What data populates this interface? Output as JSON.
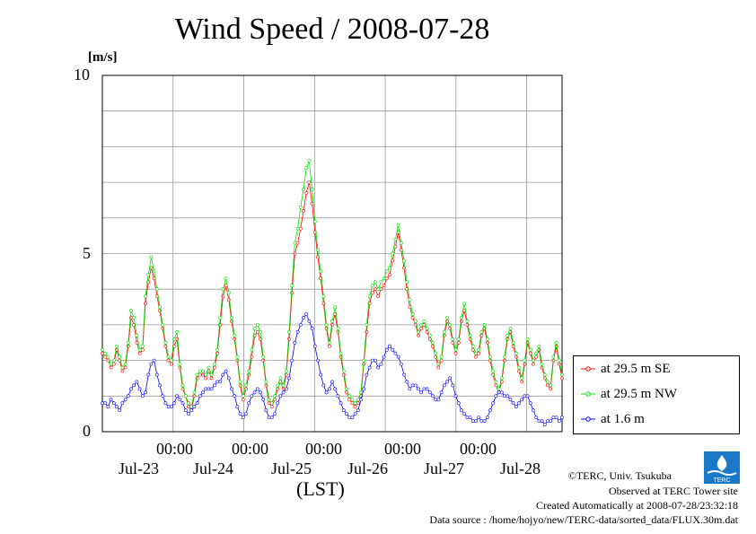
{
  "chart_data": {
    "type": "line",
    "title": "Wind Speed / 2008-07-28",
    "xlabel": "(LST)",
    "ylabel": "[m/s]",
    "ylim": [
      0,
      10
    ],
    "y_ticks": [
      "0",
      "5",
      "10"
    ],
    "x_time_ticks": [
      "00:00",
      "00:00",
      "00:00",
      "00:00",
      "00:00"
    ],
    "x_date_labels": [
      "Jul-23",
      "Jul-24",
      "Jul-25",
      "Jul-26",
      "Jul-27",
      "Jul-28"
    ],
    "x_unit": "day index from start of Jul-22 12:00",
    "grid": true,
    "legend_placement": "lower-right outside",
    "series": [
      {
        "name": "at 29.5 m SE",
        "color": "#ff0000",
        "values": [
          2.2,
          2.1,
          2.0,
          1.8,
          1.9,
          2.3,
          2.0,
          1.7,
          1.8,
          2.4,
          3.2,
          3.0,
          2.5,
          2.2,
          2.3,
          3.6,
          4.2,
          4.6,
          4.3,
          3.8,
          3.4,
          2.9,
          2.4,
          2.0,
          1.9,
          2.4,
          2.6,
          1.8,
          1.2,
          1.0,
          0.7,
          0.6,
          1.0,
          1.5,
          1.6,
          1.6,
          1.5,
          1.7,
          1.5,
          1.8,
          2.2,
          3.0,
          3.8,
          4.1,
          3.7,
          3.1,
          2.6,
          2.0,
          1.3,
          0.9,
          1.2,
          1.6,
          2.1,
          2.7,
          2.8,
          2.6,
          2.0,
          1.3,
          0.8,
          0.7,
          0.9,
          1.2,
          1.4,
          1.2,
          1.6,
          2.6,
          3.9,
          5.0,
          5.3,
          5.7,
          6.2,
          6.7,
          7.0,
          6.4,
          5.6,
          4.9,
          4.3,
          3.6,
          2.9,
          2.4,
          3.0,
          3.3,
          2.8,
          2.1,
          1.6,
          1.1,
          0.9,
          0.8,
          0.7,
          0.8,
          1.0,
          1.9,
          2.8,
          3.6,
          3.9,
          4.0,
          3.8,
          4.0,
          4.1,
          4.3,
          4.4,
          4.8,
          5.2,
          5.6,
          5.1,
          4.6,
          4.0,
          3.5,
          3.2,
          3.0,
          2.7,
          2.9,
          3.0,
          2.8,
          2.6,
          2.4,
          2.1,
          1.8,
          2.0,
          2.7,
          3.1,
          2.9,
          2.5,
          2.2,
          2.5,
          3.1,
          3.4,
          3.0,
          2.6,
          2.3,
          2.1,
          2.2,
          2.7,
          2.9,
          2.5,
          2.0,
          1.6,
          1.3,
          1.1,
          1.4,
          2.0,
          2.6,
          2.8,
          2.4,
          2.1,
          1.7,
          1.4,
          1.9,
          2.5,
          2.2,
          1.9,
          2.1,
          2.3,
          1.8,
          1.5,
          1.3,
          1.2,
          2.0,
          2.4,
          1.9,
          1.5
        ],
        "x_start": 0.0,
        "x_end": 6.5
      },
      {
        "name": "at 29.5 m NW",
        "color": "#00e000",
        "values": [
          2.3,
          2.2,
          2.1,
          1.9,
          2.0,
          2.4,
          2.1,
          1.8,
          1.9,
          2.5,
          3.4,
          3.2,
          2.7,
          2.3,
          2.4,
          3.8,
          4.4,
          4.9,
          4.5,
          4.0,
          3.5,
          3.0,
          2.5,
          2.1,
          2.0,
          2.6,
          2.8,
          1.9,
          1.3,
          1.0,
          0.8,
          0.7,
          1.1,
          1.6,
          1.7,
          1.7,
          1.6,
          1.8,
          1.6,
          1.9,
          2.3,
          3.2,
          4.0,
          4.3,
          3.9,
          3.2,
          2.7,
          2.1,
          1.4,
          1.0,
          1.3,
          1.7,
          2.3,
          2.9,
          3.0,
          2.8,
          2.1,
          1.4,
          0.9,
          0.8,
          1.0,
          1.3,
          1.5,
          1.3,
          1.7,
          2.8,
          4.1,
          5.3,
          5.7,
          6.3,
          6.8,
          7.4,
          7.6,
          6.8,
          5.9,
          5.1,
          4.5,
          3.8,
          3.0,
          2.5,
          3.1,
          3.5,
          2.9,
          2.2,
          1.7,
          1.2,
          1.0,
          0.9,
          0.8,
          0.9,
          1.1,
          2.0,
          3.0,
          3.8,
          4.1,
          4.2,
          4.0,
          4.2,
          4.3,
          4.5,
          4.6,
          5.0,
          5.4,
          5.8,
          5.3,
          4.8,
          4.2,
          3.7,
          3.3,
          3.1,
          2.8,
          3.0,
          3.1,
          2.9,
          2.7,
          2.5,
          2.2,
          1.9,
          2.1,
          2.8,
          3.2,
          3.0,
          2.6,
          2.3,
          2.6,
          3.2,
          3.6,
          3.1,
          2.7,
          2.4,
          2.2,
          2.3,
          2.8,
          3.0,
          2.6,
          2.1,
          1.7,
          1.4,
          1.2,
          1.5,
          2.1,
          2.7,
          2.9,
          2.5,
          2.2,
          1.8,
          1.5,
          2.0,
          2.6,
          2.3,
          2.0,
          2.2,
          2.4,
          1.9,
          1.6,
          1.4,
          1.3,
          2.1,
          2.5,
          2.0,
          1.6
        ],
        "x_start": 0.0,
        "x_end": 6.5
      },
      {
        "name": "at 1.6 m",
        "color": "#0000ff",
        "values": [
          0.8,
          0.8,
          0.7,
          0.9,
          0.8,
          0.7,
          0.6,
          0.8,
          0.9,
          1.0,
          1.2,
          1.3,
          1.4,
          1.2,
          1.0,
          1.1,
          1.6,
          1.9,
          2.0,
          1.6,
          1.3,
          1.0,
          0.8,
          0.7,
          0.7,
          0.8,
          1.0,
          0.9,
          0.8,
          0.6,
          0.5,
          0.6,
          0.7,
          0.8,
          1.0,
          1.1,
          1.2,
          1.2,
          1.2,
          1.3,
          1.4,
          1.4,
          1.6,
          1.7,
          1.5,
          1.2,
          1.0,
          0.7,
          0.5,
          0.4,
          0.5,
          0.8,
          1.0,
          1.1,
          1.2,
          1.1,
          0.9,
          0.6,
          0.4,
          0.4,
          0.5,
          0.8,
          1.0,
          1.1,
          1.2,
          1.5,
          2.0,
          2.5,
          2.8,
          3.0,
          3.2,
          3.3,
          3.1,
          2.9,
          2.4,
          2.0,
          1.6,
          1.3,
          1.1,
          1.2,
          1.4,
          1.2,
          1.0,
          0.8,
          0.6,
          0.5,
          0.4,
          0.4,
          0.5,
          0.6,
          0.9,
          1.2,
          1.6,
          1.8,
          2.0,
          2.0,
          1.8,
          1.9,
          2.1,
          2.3,
          2.4,
          2.3,
          2.2,
          2.1,
          1.9,
          1.6,
          1.4,
          1.2,
          1.3,
          1.3,
          1.2,
          1.1,
          1.2,
          1.2,
          1.1,
          1.0,
          0.9,
          0.9,
          1.1,
          1.3,
          1.4,
          1.5,
          1.3,
          1.0,
          0.8,
          0.6,
          0.5,
          0.4,
          0.4,
          0.3,
          0.3,
          0.4,
          0.3,
          0.3,
          0.4,
          0.6,
          0.8,
          1.0,
          1.1,
          1.1,
          1.0,
          1.0,
          0.9,
          0.8,
          0.7,
          0.8,
          0.9,
          1.0,
          1.0,
          0.8,
          0.6,
          0.4,
          0.3,
          0.3,
          0.2,
          0.3,
          0.3,
          0.4,
          0.4,
          0.3,
          0.4
        ],
        "x_start": 0.0,
        "x_end": 6.5
      }
    ]
  },
  "credits": {
    "copyright": "©TERC, Univ. Tsukuba",
    "observed": "Observed at TERC Tower site",
    "created": "Created Automatically at 2008-07-28/23:32:18",
    "source": "Data source : /home/hojyo/new/TERC-data/sorted_data/FLUX.30m.dat",
    "logo_text": "TERC"
  }
}
